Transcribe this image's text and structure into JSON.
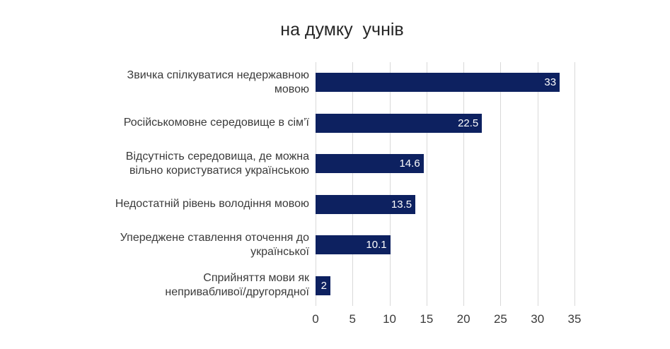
{
  "chart_data": {
    "type": "bar",
    "orientation": "horizontal",
    "title": "на думку  учнів",
    "categories": [
      "Звичка спілкуватися  недержавною\nмовою",
      "Російськомовне середовище в сім’ї",
      "Відсутність середовища, де можна\nвільно користуватися українською",
      "Недостатній рівень володіння мовою",
      "Упереджене ставлення  оточення до\nукраїнської",
      "Сприйняття  мови як\nнепривабливої/другорядної"
    ],
    "values": [
      33,
      22.5,
      14.6,
      13.5,
      10.1,
      2
    ],
    "value_labels": [
      "33",
      "22.5",
      "14.6",
      "13.5",
      "10.1",
      "2"
    ],
    "xlabel": "",
    "ylabel": "",
    "xlim": [
      0,
      35
    ],
    "xticks": [
      0,
      5,
      10,
      15,
      20,
      25,
      30,
      35
    ],
    "grid": "vertical-gridlines-on",
    "legend": "none",
    "colors": {
      "bar": "#0D2160",
      "value_label": "#FFFFFF",
      "text": "#3A3A3A",
      "title_text": "#262626",
      "gridline": "#D9D9D9",
      "background": "#FFFFFF"
    }
  }
}
